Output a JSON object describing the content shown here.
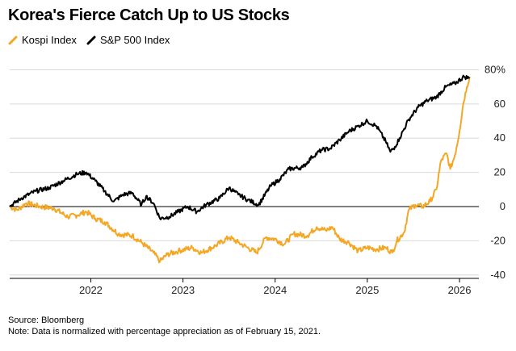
{
  "chart_data": {
    "type": "line",
    "title": "Korea's Fierce Catch Up to US Stocks",
    "xlabel": "",
    "ylabel": "",
    "x_tick_labels": [
      "2022",
      "2023",
      "2024",
      "2025",
      "2026"
    ],
    "y_tick_labels": [
      "80%",
      "60",
      "40",
      "20",
      "0",
      "-20",
      "-40"
    ],
    "ylim": [
      -42,
      84
    ],
    "xlim": [
      2021.12,
      2026.21
    ],
    "series": [
      {
        "name": "Kospi Index",
        "color": "#f5a623",
        "x": [
          2021.12,
          2021.2,
          2021.3,
          2021.45,
          2021.6,
          2021.75,
          2021.85,
          2021.95,
          2022.05,
          2022.15,
          2022.3,
          2022.45,
          2022.55,
          2022.68,
          2022.75,
          2022.83,
          2022.95,
          2023.1,
          2023.2,
          2023.35,
          2023.5,
          2023.6,
          2023.7,
          2023.8,
          2023.9,
          2024.0,
          2024.1,
          2024.2,
          2024.35,
          2024.45,
          2024.55,
          2024.62,
          2024.7,
          2024.8,
          2024.9,
          2025.0,
          2025.1,
          2025.2,
          2025.27,
          2025.32,
          2025.4,
          2025.45,
          2025.52,
          2025.6,
          2025.68,
          2025.75,
          2025.8,
          2025.86,
          2025.9,
          2025.95,
          2026.0,
          2026.04,
          2026.08,
          2026.11
        ],
        "values": [
          0,
          -2,
          2,
          0,
          -1,
          -6,
          -5,
          -3,
          -7,
          -9,
          -16,
          -17,
          -21,
          -27,
          -32,
          -28,
          -26,
          -24,
          -27,
          -23,
          -18,
          -21,
          -24,
          -27,
          -18,
          -19,
          -22,
          -16,
          -17,
          -12,
          -14,
          -12,
          -19,
          -21,
          -26,
          -24,
          -25,
          -24,
          -27,
          -20,
          -15,
          -2,
          1,
          0,
          3,
          10,
          27,
          31,
          22,
          30,
          44,
          60,
          70,
          76
        ]
      },
      {
        "name": "S&P 500 Index",
        "color": "#000000",
        "x": [
          2021.12,
          2021.25,
          2021.4,
          2021.55,
          2021.7,
          2021.85,
          2021.95,
          2022.05,
          2022.15,
          2022.25,
          2022.35,
          2022.45,
          2022.55,
          2022.6,
          2022.68,
          2022.75,
          2022.85,
          2022.95,
          2023.05,
          2023.15,
          2023.25,
          2023.4,
          2023.5,
          2023.6,
          2023.7,
          2023.82,
          2023.95,
          2024.05,
          2024.15,
          2024.3,
          2024.4,
          2024.5,
          2024.6,
          2024.7,
          2024.8,
          2024.9,
          2025.0,
          2025.1,
          2025.2,
          2025.25,
          2025.3,
          2025.35,
          2025.45,
          2025.55,
          2025.65,
          2025.75,
          2025.85,
          2025.95,
          2026.05,
          2026.11
        ],
        "values": [
          0,
          5,
          9,
          11,
          15,
          19,
          20,
          15,
          9,
          3,
          7,
          8,
          1,
          6,
          2,
          -7,
          -6,
          -3,
          0,
          -3,
          1,
          5,
          11,
          7,
          4,
          1,
          12,
          16,
          22,
          23,
          29,
          33,
          34,
          39,
          44,
          47,
          50,
          47,
          38,
          32,
          35,
          40,
          51,
          58,
          62,
          64,
          70,
          72,
          76,
          75
        ]
      }
    ]
  },
  "legend": {
    "items": [
      {
        "label": "Kospi Index",
        "color": "#f5a623"
      },
      {
        "label": "S&P 500 Index",
        "color": "#000000"
      }
    ]
  },
  "footer": {
    "source": "Source: Bloomberg",
    "note": "Note: Data is normalized with percentage appreciation as of February 15, 2021."
  },
  "colors": {
    "kospi": "#f5a623",
    "sp500": "#000000",
    "gridline": "#d9d9d9",
    "zero_line": "#000000"
  }
}
